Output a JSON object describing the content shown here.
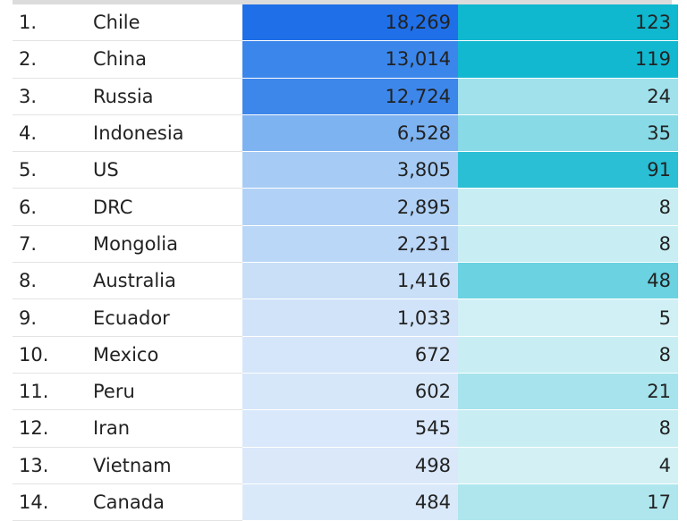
{
  "chart_data": {
    "type": "table",
    "columns": [
      "rank",
      "country",
      "value_a",
      "value_b"
    ],
    "rows": [
      {
        "rank": "1.",
        "country": "Chile",
        "value_a": "18,269",
        "value_b": "123",
        "a": 18269,
        "b": 123
      },
      {
        "rank": "2.",
        "country": "China",
        "value_a": "13,014",
        "value_b": "119",
        "a": 13014,
        "b": 119
      },
      {
        "rank": "3.",
        "country": "Russia",
        "value_a": "12,724",
        "value_b": "24",
        "a": 12724,
        "b": 24
      },
      {
        "rank": "4.",
        "country": "Indonesia",
        "value_a": "6,528",
        "value_b": "35",
        "a": 6528,
        "b": 35
      },
      {
        "rank": "5.",
        "country": "US",
        "value_a": "3,805",
        "value_b": "91",
        "a": 3805,
        "b": 91
      },
      {
        "rank": "6.",
        "country": "DRC",
        "value_a": "2,895",
        "value_b": "8",
        "a": 2895,
        "b": 8
      },
      {
        "rank": "7.",
        "country": "Mongolia",
        "value_a": "2,231",
        "value_b": "8",
        "a": 2231,
        "b": 8
      },
      {
        "rank": "8.",
        "country": "Australia",
        "value_a": "1,416",
        "value_b": "48",
        "a": 1416,
        "b": 48
      },
      {
        "rank": "9.",
        "country": "Ecuador",
        "value_a": "1,033",
        "value_b": "5",
        "a": 1033,
        "b": 5
      },
      {
        "rank": "10.",
        "country": "Mexico",
        "value_a": "672",
        "value_b": "8",
        "a": 672,
        "b": 8
      },
      {
        "rank": "11.",
        "country": "Peru",
        "value_a": "602",
        "value_b": "21",
        "a": 602,
        "b": 21
      },
      {
        "rank": "12.",
        "country": "Iran",
        "value_a": "545",
        "value_b": "8",
        "a": 545,
        "b": 8
      },
      {
        "rank": "13.",
        "country": "Vietnam",
        "value_a": "498",
        "value_b": "4",
        "a": 498,
        "b": 4
      },
      {
        "rank": "14.",
        "country": "Canada",
        "value_a": "484",
        "value_b": "17",
        "a": 484,
        "b": 17
      }
    ],
    "colors": {
      "column_a_scale": [
        "#eef5fd",
        "#cfe2f9",
        "#9dc7f4",
        "#4c94ed",
        "#1f6fe8"
      ],
      "column_b_scale": [
        "#eef9fb",
        "#c9eef3",
        "#93dde8",
        "#40c6d9",
        "#0fb7cf"
      ]
    }
  }
}
